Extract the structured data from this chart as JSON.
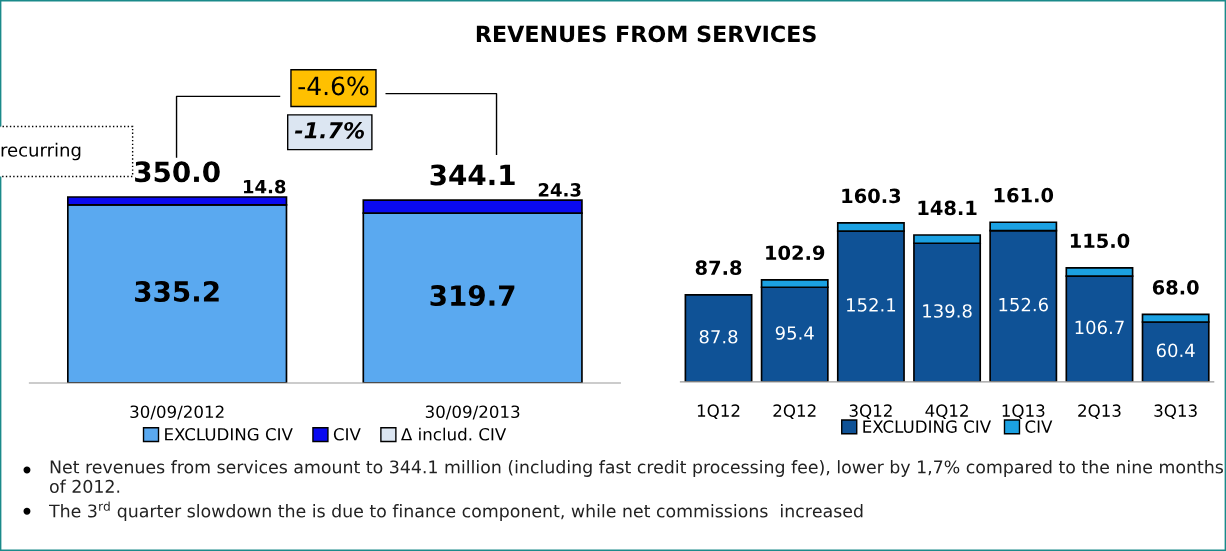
{
  "chart_data": [
    {
      "type": "bar",
      "title": "REVENUES FROM SERVICES",
      "categories": [
        "30/09/2012",
        "30/09/2013"
      ],
      "stacked": true,
      "legend": "bottom",
      "tick_labels": "x",
      "series": [
        {
          "name": "EXCLUDING CIV",
          "color": "#5aa9f0",
          "values": [
            335.2,
            319.7
          ],
          "value_labels": [
            "335.2",
            "319.7"
          ]
        },
        {
          "name": "CIV",
          "color": "#0a0af0",
          "values": [
            14.8,
            24.3
          ],
          "value_labels": [
            "14.8",
            "24.3"
          ]
        }
      ],
      "totals": [
        "350.0",
        "344.1"
      ],
      "annotations": [
        "-4.6%",
        "-1.7%",
        "Δ includ. CIV",
        "recurring",
        "Net revenues from services amount to 344.1 million (including fast credit processing fee), lower by 1,7% compared to the nine months of 2012.",
        "The 3$^{rd}$ quarter slowdown the is due to finance component, while net commissions  increased"
      ]
    },
    {
      "type": "bar",
      "categories": [
        "1Q12",
        "2Q12",
        "3Q12",
        "4Q12",
        "1Q13",
        "2Q13",
        "3Q13"
      ],
      "stacked": true,
      "legend": "bottom",
      "tick_labels": "x",
      "series": [
        {
          "name": "EXCLUDING CIV",
          "color": "#0f5296",
          "values": [
            87.8,
            95.4,
            152.1,
            139.8,
            152.6,
            106.7,
            60.4
          ],
          "value_labels": [
            "87.8",
            "95.4",
            "152.1",
            "139.8",
            "152.6",
            "106.7",
            "60.4"
          ]
        },
        {
          "name": "CIV",
          "color": "#1ba1e2",
          "values": [
            null,
            7.5,
            8.2,
            8.3,
            8.4,
            8.3,
            7.6
          ]
        }
      ],
      "totals": [
        "87.8",
        "102.9",
        "160.3",
        "148.1",
        "161.0",
        "115.0",
        "68.0"
      ]
    }
  ]
}
